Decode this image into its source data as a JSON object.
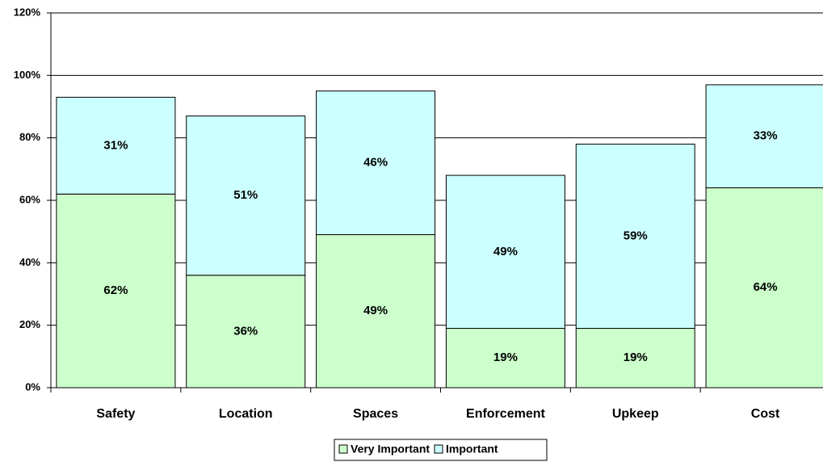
{
  "chart_data": {
    "type": "stacked_bar",
    "categories": [
      "Safety",
      "Location",
      "Spaces",
      "Enforcement",
      "Upkeep",
      "Cost"
    ],
    "series": [
      {
        "name": "Very Important",
        "color": "#ccffcc",
        "values": [
          62,
          36,
          49,
          19,
          19,
          64
        ],
        "value_labels": [
          "62%",
          "36%",
          "49%",
          "19%",
          "19%",
          "64%"
        ]
      },
      {
        "name": "Important",
        "color": "#ccffff",
        "values": [
          31,
          51,
          46,
          49,
          59,
          33
        ],
        "value_labels": [
          "31%",
          "51%",
          "46%",
          "49%",
          "59%",
          "33%"
        ]
      }
    ],
    "ylim": [
      0,
      120
    ],
    "yticks": [
      {
        "value": 0,
        "label": "0%"
      },
      {
        "value": 20,
        "label": "20%"
      },
      {
        "value": 40,
        "label": "40%"
      },
      {
        "value": 60,
        "label": "60%"
      },
      {
        "value": 80,
        "label": "80%"
      },
      {
        "value": 100,
        "label": "100%"
      },
      {
        "value": 120,
        "label": "120%"
      }
    ],
    "grid": true,
    "legend": "bottom"
  }
}
